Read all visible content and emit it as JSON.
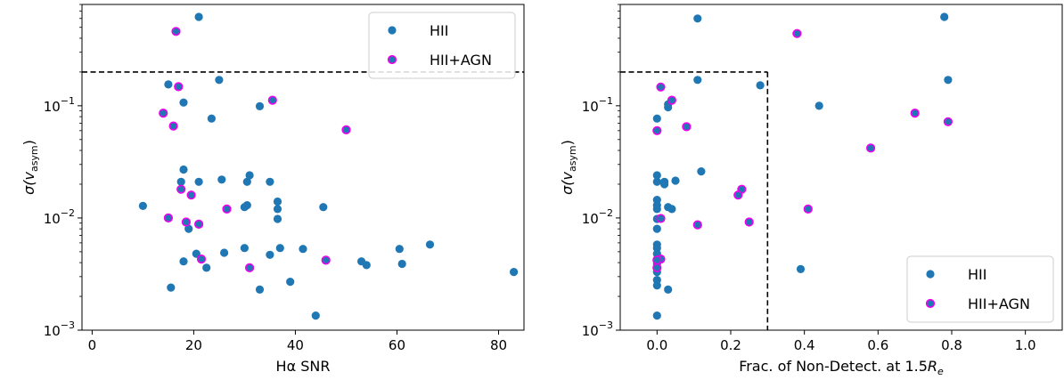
{
  "colors": {
    "hii": "#1f77b4",
    "agn_edge": "#ee00ee",
    "dashed": "#000000"
  },
  "chart_data": [
    {
      "type": "scatter",
      "xlabel": "Hα SNR",
      "ylabel_main": "σ(v",
      "ylabel_sub": "asym",
      "ylabel_close": ")",
      "xlim": [
        -2,
        85
      ],
      "ylim": [
        0.001,
        0.8
      ],
      "yscale": "log",
      "xticks": [
        {
          "v": 0,
          "label": "0"
        },
        {
          "v": 20,
          "label": "20"
        },
        {
          "v": 40,
          "label": "40"
        },
        {
          "v": 60,
          "label": "60"
        },
        {
          "v": 80,
          "label": "80"
        }
      ],
      "yticks": [
        {
          "v": 0.001,
          "base": "10",
          "exp": "−3"
        },
        {
          "v": 0.01,
          "base": "10",
          "exp": "−2"
        },
        {
          "v": 0.1,
          "base": "10",
          "exp": "−1"
        }
      ],
      "hlines": [
        0.2
      ],
      "vlines": [],
      "legend": "top-right",
      "series": [
        {
          "name": "HII",
          "points": [
            [
              21,
              0.62
            ],
            [
              15,
              0.155
            ],
            [
              25,
              0.17
            ],
            [
              33,
              0.099
            ],
            [
              18,
              0.107
            ],
            [
              23.5,
              0.077
            ],
            [
              18,
              0.027
            ],
            [
              17.5,
              0.021
            ],
            [
              21,
              0.021
            ],
            [
              25.5,
              0.022
            ],
            [
              31,
              0.024
            ],
            [
              30.5,
              0.021
            ],
            [
              35,
              0.021
            ],
            [
              30.5,
              0.013
            ],
            [
              30,
              0.0125
            ],
            [
              36.5,
              0.014
            ],
            [
              36.5,
              0.012
            ],
            [
              36.5,
              0.0098
            ],
            [
              45.5,
              0.0125
            ],
            [
              10,
              0.0128
            ],
            [
              19,
              0.008
            ],
            [
              20.5,
              0.0048
            ],
            [
              18,
              0.0041
            ],
            [
              22.5,
              0.0036
            ],
            [
              26,
              0.0049
            ],
            [
              30,
              0.0054
            ],
            [
              35,
              0.0047
            ],
            [
              37,
              0.0054
            ],
            [
              41.5,
              0.0053
            ],
            [
              53,
              0.0041
            ],
            [
              54,
              0.0038
            ],
            [
              60.5,
              0.0053
            ],
            [
              61,
              0.0039
            ],
            [
              66.5,
              0.0058
            ],
            [
              83,
              0.0033
            ],
            [
              15.5,
              0.0024
            ],
            [
              33,
              0.0023
            ],
            [
              39,
              0.0027
            ],
            [
              44,
              0.00135
            ]
          ]
        },
        {
          "name": "HII+AGN",
          "points": [
            [
              16.5,
              0.46
            ],
            [
              17,
              0.148
            ],
            [
              35.5,
              0.112
            ],
            [
              14,
              0.086
            ],
            [
              16,
              0.066
            ],
            [
              50,
              0.061
            ],
            [
              17.5,
              0.018
            ],
            [
              19.5,
              0.016
            ],
            [
              15,
              0.01
            ],
            [
              18.5,
              0.0092
            ],
            [
              21,
              0.0088
            ],
            [
              26.5,
              0.012
            ],
            [
              21.5,
              0.0043
            ],
            [
              31,
              0.0036
            ],
            [
              46,
              0.0042
            ]
          ]
        }
      ]
    },
    {
      "type": "scatter",
      "xlabel_main": "Frac. of Non-Detect. at 1.5",
      "xlabel_var": "R",
      "xlabel_sub": "e",
      "ylabel_main": "σ(v",
      "ylabel_sub": "asym",
      "ylabel_close": ")",
      "xlim": [
        -0.1,
        1.1
      ],
      "ylim": [
        0.001,
        0.8
      ],
      "yscale": "log",
      "xticks": [
        {
          "v": 0.0,
          "label": "0.0"
        },
        {
          "v": 0.2,
          "label": "0.2"
        },
        {
          "v": 0.4,
          "label": "0.4"
        },
        {
          "v": 0.6,
          "label": "0.6"
        },
        {
          "v": 0.8,
          "label": "0.8"
        },
        {
          "v": 1.0,
          "label": "1.0"
        }
      ],
      "yticks": [
        {
          "v": 0.001,
          "base": "10",
          "exp": "−3"
        },
        {
          "v": 0.01,
          "base": "10",
          "exp": "−2"
        },
        {
          "v": 0.1,
          "base": "10",
          "exp": "−1"
        }
      ],
      "hlines": [
        0.2
      ],
      "hline_xmax": 0.3,
      "vlines": [
        0.3
      ],
      "vline_ymax": 0.2,
      "legend": "bottom-right",
      "series": [
        {
          "name": "HII",
          "points": [
            [
              0.11,
              0.6
            ],
            [
              0.78,
              0.62
            ],
            [
              0.11,
              0.17
            ],
            [
              0.28,
              0.152
            ],
            [
              0.79,
              0.17
            ],
            [
              0.44,
              0.1
            ],
            [
              0.03,
              0.097
            ],
            [
              0.03,
              0.103
            ],
            [
              0.0,
              0.077
            ],
            [
              0.12,
              0.026
            ],
            [
              0.0,
              0.024
            ],
            [
              0.0,
              0.021
            ],
            [
              0.02,
              0.021
            ],
            [
              0.02,
              0.02
            ],
            [
              0.05,
              0.0215
            ],
            [
              0.0,
              0.0145
            ],
            [
              0.0,
              0.013
            ],
            [
              0.0,
              0.012
            ],
            [
              0.03,
              0.0125
            ],
            [
              0.04,
              0.012
            ],
            [
              0.0,
              0.0098
            ],
            [
              0.0,
              0.008
            ],
            [
              0.0,
              0.0058
            ],
            [
              0.0,
              0.0054
            ],
            [
              0.0,
              0.0048
            ],
            [
              0.0,
              0.0043
            ],
            [
              0.01,
              0.0043
            ],
            [
              0.0,
              0.0039
            ],
            [
              0.0,
              0.0033
            ],
            [
              0.0,
              0.0028
            ],
            [
              0.0,
              0.0025
            ],
            [
              0.03,
              0.0023
            ],
            [
              0.0,
              0.00135
            ],
            [
              0.39,
              0.0035
            ]
          ]
        },
        {
          "name": "HII+AGN",
          "points": [
            [
              0.38,
              0.44
            ],
            [
              0.01,
              0.147
            ],
            [
              0.04,
              0.112
            ],
            [
              0.0,
              0.06
            ],
            [
              0.08,
              0.065
            ],
            [
              0.7,
              0.086
            ],
            [
              0.79,
              0.072
            ],
            [
              0.58,
              0.042
            ],
            [
              0.23,
              0.018
            ],
            [
              0.22,
              0.016
            ],
            [
              0.41,
              0.012
            ],
            [
              0.25,
              0.0092
            ],
            [
              0.11,
              0.0087
            ],
            [
              0.01,
              0.0099
            ],
            [
              0.01,
              0.0043
            ],
            [
              0.0,
              0.0036
            ],
            [
              0.0,
              0.0042
            ]
          ]
        }
      ]
    }
  ]
}
